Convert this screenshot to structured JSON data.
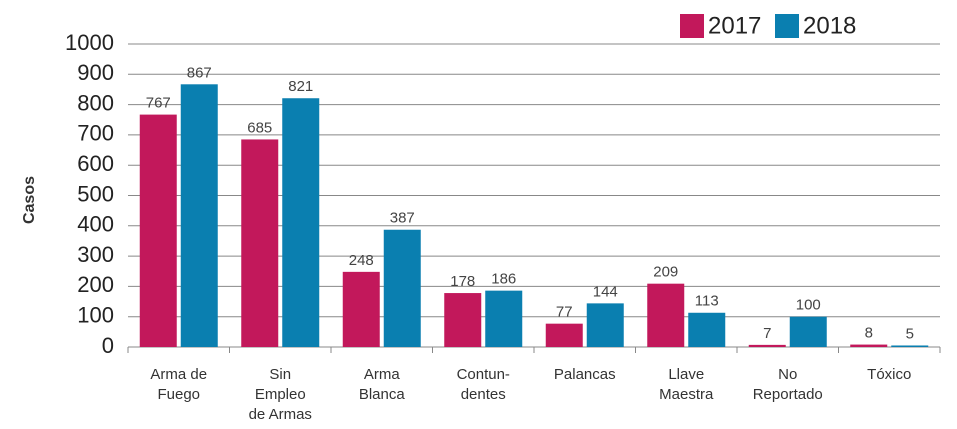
{
  "chart_data": {
    "type": "bar",
    "y_label": "Casos",
    "categories": [
      [
        "Arma de",
        "Fuego"
      ],
      [
        "Sin",
        "Empleo",
        "de Armas"
      ],
      [
        "Arma",
        "Blanca"
      ],
      [
        "Contun-",
        "dentes"
      ],
      [
        "Palancas"
      ],
      [
        "Llave",
        "Maestra"
      ],
      [
        "No",
        "Reportado"
      ],
      [
        "Tóxico"
      ]
    ],
    "series": [
      {
        "name": "2017",
        "color": "#c2185b",
        "values": [
          767,
          685,
          248,
          178,
          77,
          209,
          7,
          8
        ]
      },
      {
        "name": "2018",
        "color": "#0a7fb0",
        "values": [
          867,
          821,
          387,
          186,
          144,
          113,
          100,
          5
        ]
      }
    ],
    "ylim": [
      0,
      1000
    ],
    "yticks": [
      0,
      100,
      200,
      300,
      400,
      500,
      600,
      700,
      800,
      900,
      1000
    ],
    "grid": true
  }
}
